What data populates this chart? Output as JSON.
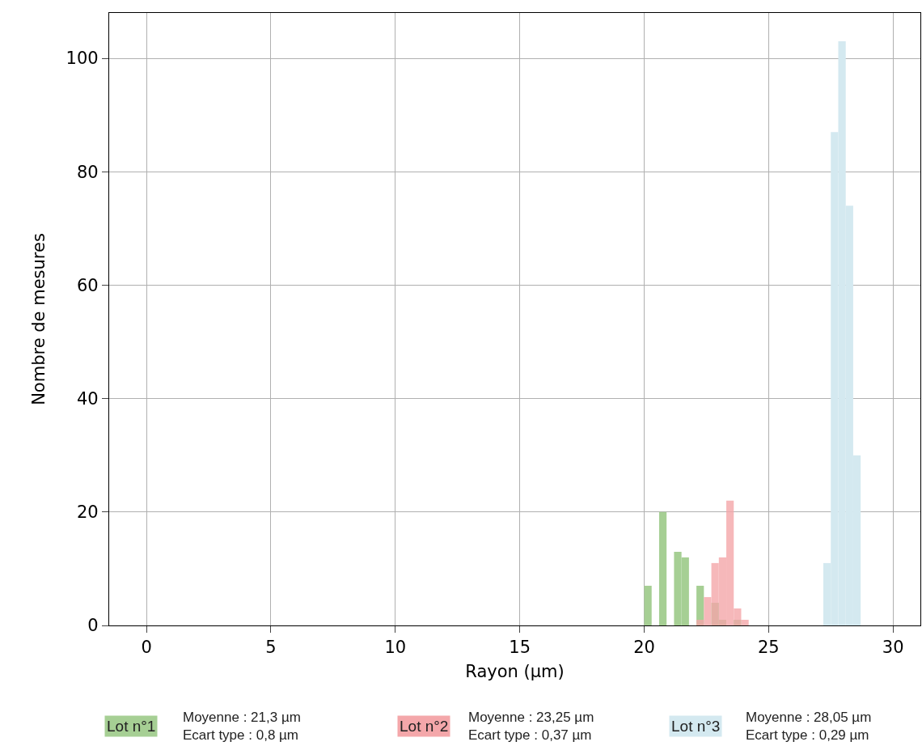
{
  "chart_data": {
    "type": "histogram",
    "xlabel": "Rayon (µm)",
    "ylabel": "Nombre de mesures",
    "xlim": [
      -1.5,
      31.1
    ],
    "xticks": [
      0,
      5,
      10,
      15,
      20,
      25,
      30
    ],
    "ylim": [
      0,
      108
    ],
    "yticks": [
      0,
      20,
      40,
      60,
      80,
      100
    ],
    "grid": true,
    "legend": false,
    "bins": [
      20.0,
      20.3,
      20.6,
      20.9,
      21.2,
      21.5,
      21.8,
      22.1,
      22.4,
      22.7,
      23.0,
      23.3,
      23.6,
      23.9,
      24.2,
      24.5,
      24.8,
      25.1,
      25.4,
      25.7,
      26.0,
      26.3,
      26.6,
      26.9,
      27.2,
      27.5,
      27.8,
      28.1,
      28.4,
      28.7
    ],
    "series": [
      {
        "name": "Lot n°1",
        "color": "#a6cf94",
        "values": [
          7,
          0,
          20,
          0,
          13,
          12,
          0,
          7,
          0,
          4,
          1,
          0,
          1,
          0,
          0,
          0,
          0,
          0,
          0,
          0,
          0,
          0,
          0,
          0,
          0,
          0,
          0,
          0,
          0
        ]
      },
      {
        "name": "Lot n°2",
        "color": "#f4a7aa",
        "values": [
          0,
          0,
          0,
          0,
          0,
          0,
          0,
          1,
          5,
          11,
          12,
          22,
          3,
          1,
          0,
          0,
          0,
          0,
          0,
          0,
          0,
          0,
          0,
          0,
          0,
          0,
          0,
          0,
          0
        ]
      },
      {
        "name": "Lot n°3",
        "color": "#d4e9f0",
        "values": [
          0,
          0,
          0,
          0,
          0,
          0,
          0,
          0,
          0,
          0,
          0,
          0,
          0,
          0,
          0,
          0,
          0,
          0,
          0,
          0,
          0,
          0,
          0,
          0,
          11,
          87,
          103,
          74,
          30
        ]
      }
    ],
    "annotations": [
      "Moyenne : 21,3 µm\nEcart type : 0,8 µm",
      "Moyenne : 23,25 µm\nEcart type : 0,37 µm",
      "Moyenne : 28,05 µm\nEcart type : 0,29 µm"
    ]
  }
}
